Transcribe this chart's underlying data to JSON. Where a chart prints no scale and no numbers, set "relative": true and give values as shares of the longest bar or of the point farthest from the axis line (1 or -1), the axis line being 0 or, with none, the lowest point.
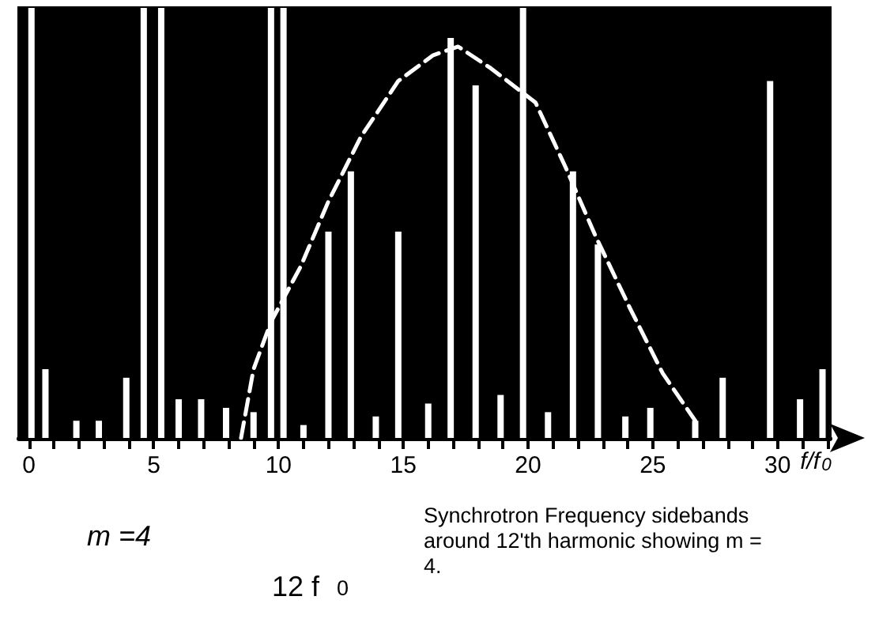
{
  "chart_data": {
    "type": "bar",
    "relative": true,
    "xlabel": "f/f$_{0}$",
    "xlim": [
      -0.4,
      32.1
    ],
    "xticks": [
      0,
      5,
      10,
      15,
      20,
      25,
      30
    ],
    "tick_labels": "x",
    "grid": false,
    "annotations": [
      "m =4",
      "12 f$_{0}$",
      "Synchrotron Frequency sidebands around 12'th harmonic showing m = 4."
    ],
    "series": [
      {
        "color": "#ffffff",
        "x": [
          0.1,
          0.66,
          1.9,
          2.8,
          3.9,
          4.6,
          5.3,
          6.0,
          6.9,
          7.9,
          9.0,
          9.7,
          10.2,
          11.0,
          12.0,
          12.9,
          13.9,
          14.8,
          16.0,
          16.9,
          17.9,
          18.9,
          19.8,
          20.8,
          21.8,
          22.8,
          23.9,
          24.9,
          26.7,
          27.8,
          29.7,
          30.9,
          31.8
        ],
        "values": [
          1,
          0.16,
          0.04,
          0.04,
          0.14,
          1,
          1,
          0.09,
          0.09,
          0.07,
          0.06,
          1,
          1,
          0.03,
          0.48,
          0.62,
          0.05,
          0.48,
          0.08,
          0.93,
          0.82,
          0.1,
          1,
          0.06,
          0.62,
          0.45,
          0.05,
          0.07,
          0.04,
          0.14,
          0.83,
          0.09,
          0.16
        ]
      },
      {
        "type": "line",
        "color": "#ffffff",
        "line_style": "dashed",
        "marker": "none",
        "x": [
          8.5,
          9.0,
          9.7,
          10.9,
          12.0,
          13.3,
          14.8,
          16.2,
          17.2,
          18.5,
          20.3,
          21.5,
          22.7,
          24.1,
          25.4,
          26.7
        ],
        "values": [
          0,
          0.16,
          0.27,
          0.4,
          0.55,
          0.7,
          0.83,
          0.89,
          0.91,
          0.86,
          0.78,
          0.63,
          0.47,
          0.3,
          0.15,
          0.04
        ]
      }
    ]
  }
}
